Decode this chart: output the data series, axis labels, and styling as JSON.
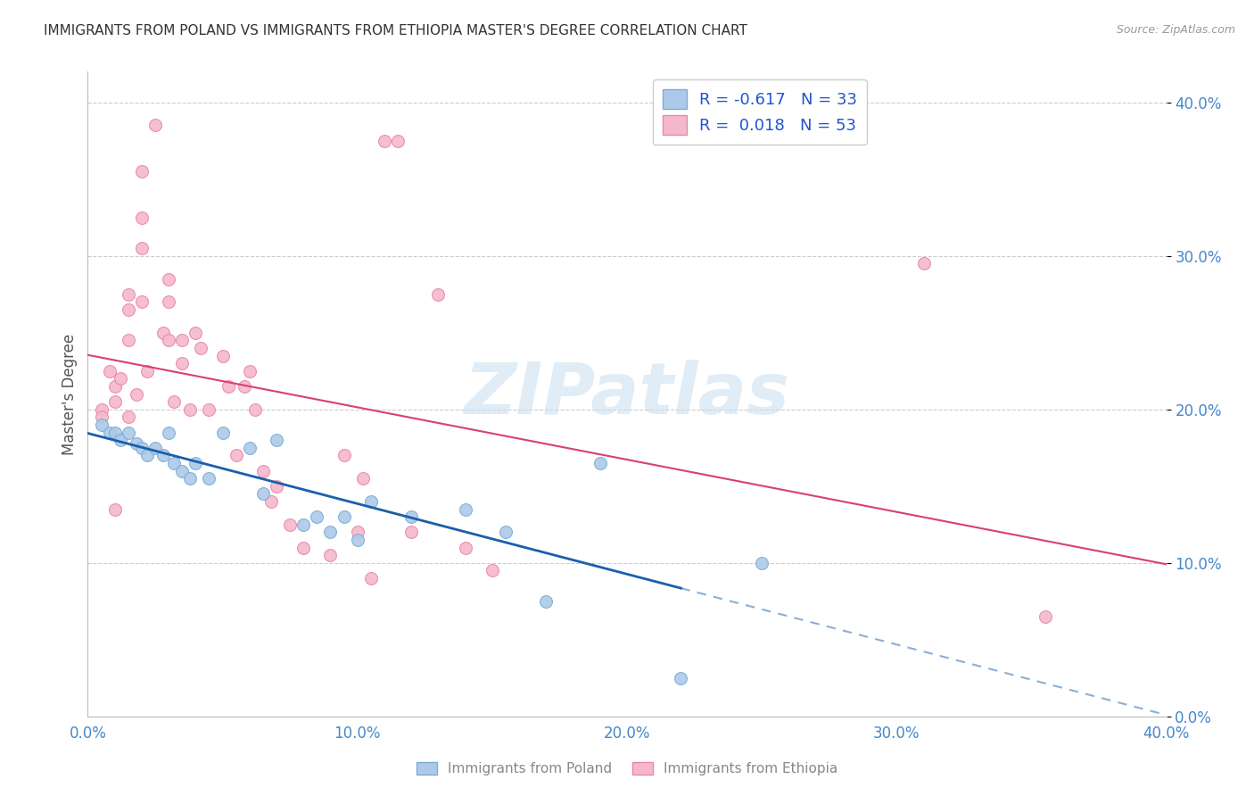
{
  "title": "IMMIGRANTS FROM POLAND VS IMMIGRANTS FROM ETHIOPIA MASTER'S DEGREE CORRELATION CHART",
  "source": "Source: ZipAtlas.com",
  "ylabel": "Master's Degree",
  "xlabel_poland": "Immigrants from Poland",
  "xlabel_ethiopia": "Immigrants from Ethiopia",
  "xlim": [
    0.0,
    0.4
  ],
  "ylim": [
    0.0,
    0.42
  ],
  "yticks": [
    0.0,
    0.1,
    0.2,
    0.3,
    0.4
  ],
  "xticks": [
    0.0,
    0.1,
    0.2,
    0.3,
    0.4
  ],
  "poland_color": "#adc9e8",
  "ethiopia_color": "#f5b8cb",
  "poland_edge": "#7aadd4",
  "ethiopia_edge": "#e888a8",
  "trend_poland_color": "#1a5faa",
  "trend_poland_dash": false,
  "trend_ethiopia_color": "#d94070",
  "r_poland": -0.617,
  "n_poland": 33,
  "r_ethiopia": 0.018,
  "n_ethiopia": 53,
  "legend_text_color": "#2255cc",
  "background_color": "#ffffff",
  "grid_color": "#cccccc",
  "watermark": "ZIPatlas",
  "poland_x": [
    0.005,
    0.008,
    0.01,
    0.012,
    0.015,
    0.018,
    0.02,
    0.022,
    0.025,
    0.028,
    0.03,
    0.032,
    0.035,
    0.038,
    0.04,
    0.045,
    0.05,
    0.06,
    0.065,
    0.07,
    0.08,
    0.085,
    0.09,
    0.095,
    0.1,
    0.105,
    0.12,
    0.14,
    0.155,
    0.17,
    0.19,
    0.22,
    0.25
  ],
  "poland_y": [
    0.19,
    0.185,
    0.185,
    0.18,
    0.185,
    0.178,
    0.175,
    0.17,
    0.175,
    0.17,
    0.185,
    0.165,
    0.16,
    0.155,
    0.165,
    0.155,
    0.185,
    0.175,
    0.145,
    0.18,
    0.125,
    0.13,
    0.12,
    0.13,
    0.115,
    0.14,
    0.13,
    0.135,
    0.12,
    0.075,
    0.165,
    0.025,
    0.1
  ],
  "ethiopia_x": [
    0.005,
    0.005,
    0.008,
    0.01,
    0.01,
    0.01,
    0.012,
    0.015,
    0.015,
    0.015,
    0.015,
    0.018,
    0.02,
    0.02,
    0.02,
    0.02,
    0.022,
    0.025,
    0.028,
    0.03,
    0.03,
    0.03,
    0.032,
    0.035,
    0.035,
    0.038,
    0.04,
    0.042,
    0.045,
    0.05,
    0.052,
    0.055,
    0.058,
    0.06,
    0.062,
    0.065,
    0.068,
    0.07,
    0.075,
    0.08,
    0.09,
    0.095,
    0.1,
    0.102,
    0.105,
    0.11,
    0.115,
    0.12,
    0.13,
    0.14,
    0.15,
    0.31,
    0.355
  ],
  "ethiopia_y": [
    0.2,
    0.195,
    0.225,
    0.215,
    0.205,
    0.135,
    0.22,
    0.275,
    0.265,
    0.245,
    0.195,
    0.21,
    0.355,
    0.325,
    0.305,
    0.27,
    0.225,
    0.385,
    0.25,
    0.285,
    0.27,
    0.245,
    0.205,
    0.245,
    0.23,
    0.2,
    0.25,
    0.24,
    0.2,
    0.235,
    0.215,
    0.17,
    0.215,
    0.225,
    0.2,
    0.16,
    0.14,
    0.15,
    0.125,
    0.11,
    0.105,
    0.17,
    0.12,
    0.155,
    0.09,
    0.375,
    0.375,
    0.12,
    0.275,
    0.11,
    0.095,
    0.295,
    0.065
  ],
  "marker_size": 100
}
